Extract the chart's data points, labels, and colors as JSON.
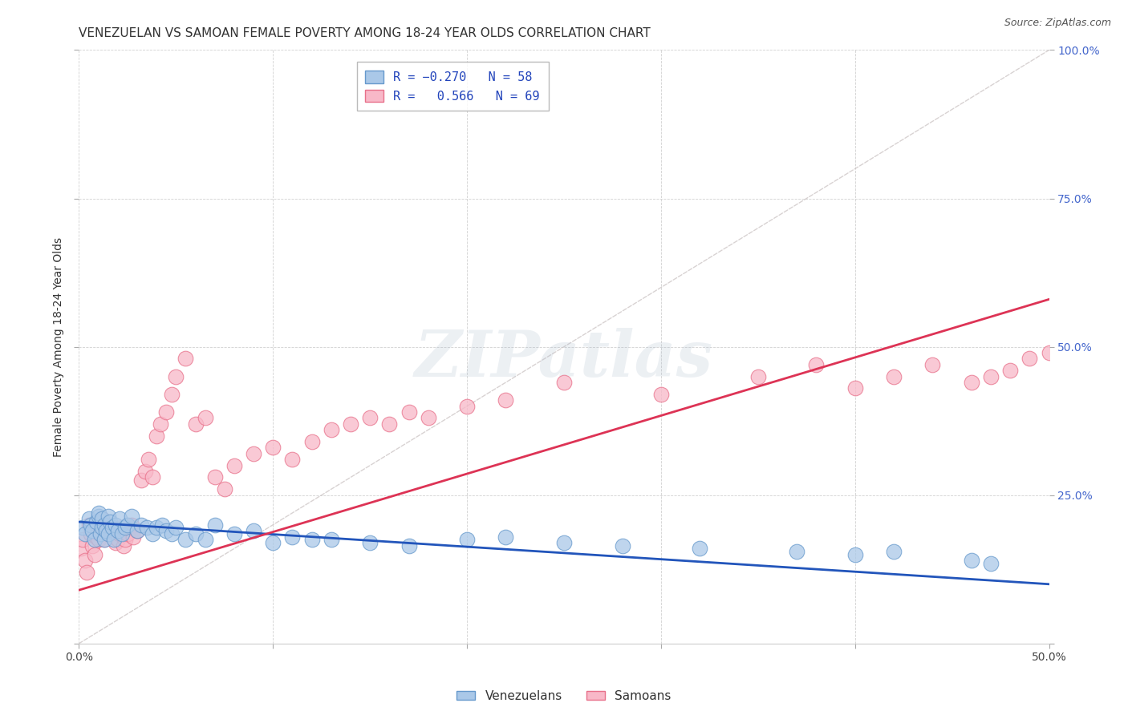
{
  "title": "VENEZUELAN VS SAMOAN FEMALE POVERTY AMONG 18-24 YEAR OLDS CORRELATION CHART",
  "source": "Source: ZipAtlas.com",
  "ylabel": "Female Poverty Among 18-24 Year Olds",
  "xlim": [
    0.0,
    0.5
  ],
  "ylim": [
    0.0,
    1.0
  ],
  "xticks": [
    0.0,
    0.1,
    0.2,
    0.3,
    0.4,
    0.5
  ],
  "xticklabels_show": [
    "0.0%",
    "",
    "",
    "",
    "",
    "50.0%"
  ],
  "yticks": [
    0.0,
    0.25,
    0.5,
    0.75,
    1.0
  ],
  "yticklabels_right": [
    "",
    "25.0%",
    "50.0%",
    "75.0%",
    "100.0%"
  ],
  "background_color": "#ffffff",
  "grid_color": "#cccccc",
  "venezuelan_color": "#aac8e8",
  "samoan_color": "#f8b8c8",
  "venezuelan_edge": "#6699cc",
  "samoan_edge": "#e8708a",
  "trendline_blue": "#2255bb",
  "trendline_pink": "#dd3355",
  "diag_color": "#c8c0c0",
  "watermark": "ZIPatlas",
  "title_fontsize": 11,
  "axis_label_fontsize": 10,
  "tick_fontsize": 10,
  "legend_fontsize": 11,
  "source_fontsize": 9,
  "venezuelan_x": [
    0.002,
    0.003,
    0.005,
    0.006,
    0.007,
    0.008,
    0.009,
    0.01,
    0.01,
    0.011,
    0.012,
    0.012,
    0.013,
    0.013,
    0.014,
    0.015,
    0.015,
    0.016,
    0.017,
    0.018,
    0.019,
    0.02,
    0.021,
    0.022,
    0.024,
    0.025,
    0.027,
    0.03,
    0.032,
    0.035,
    0.038,
    0.04,
    0.043,
    0.045,
    0.048,
    0.05,
    0.055,
    0.06,
    0.065,
    0.07,
    0.08,
    0.09,
    0.1,
    0.11,
    0.12,
    0.13,
    0.15,
    0.17,
    0.2,
    0.22,
    0.25,
    0.28,
    0.32,
    0.37,
    0.4,
    0.42,
    0.46,
    0.47
  ],
  "venezuelan_y": [
    0.195,
    0.185,
    0.21,
    0.2,
    0.19,
    0.175,
    0.205,
    0.215,
    0.22,
    0.185,
    0.195,
    0.21,
    0.175,
    0.2,
    0.19,
    0.215,
    0.185,
    0.205,
    0.195,
    0.175,
    0.2,
    0.19,
    0.21,
    0.185,
    0.195,
    0.2,
    0.215,
    0.19,
    0.2,
    0.195,
    0.185,
    0.195,
    0.2,
    0.19,
    0.185,
    0.195,
    0.175,
    0.185,
    0.175,
    0.2,
    0.185,
    0.19,
    0.17,
    0.18,
    0.175,
    0.175,
    0.17,
    0.165,
    0.175,
    0.18,
    0.17,
    0.165,
    0.16,
    0.155,
    0.15,
    0.155,
    0.14,
    0.135
  ],
  "samoan_x": [
    0.001,
    0.002,
    0.003,
    0.004,
    0.005,
    0.006,
    0.007,
    0.008,
    0.009,
    0.01,
    0.01,
    0.011,
    0.012,
    0.013,
    0.014,
    0.015,
    0.016,
    0.017,
    0.018,
    0.019,
    0.02,
    0.021,
    0.022,
    0.023,
    0.024,
    0.025,
    0.026,
    0.027,
    0.028,
    0.03,
    0.032,
    0.034,
    0.036,
    0.038,
    0.04,
    0.042,
    0.045,
    0.048,
    0.05,
    0.055,
    0.06,
    0.065,
    0.07,
    0.075,
    0.08,
    0.09,
    0.1,
    0.11,
    0.12,
    0.13,
    0.14,
    0.15,
    0.16,
    0.17,
    0.18,
    0.2,
    0.22,
    0.25,
    0.3,
    0.35,
    0.38,
    0.4,
    0.42,
    0.44,
    0.46,
    0.47,
    0.48,
    0.49,
    0.5
  ],
  "samoan_y": [
    0.16,
    0.175,
    0.14,
    0.12,
    0.2,
    0.185,
    0.165,
    0.15,
    0.18,
    0.175,
    0.19,
    0.195,
    0.21,
    0.175,
    0.2,
    0.185,
    0.195,
    0.19,
    0.18,
    0.17,
    0.175,
    0.185,
    0.195,
    0.165,
    0.175,
    0.185,
    0.195,
    0.2,
    0.18,
    0.19,
    0.275,
    0.29,
    0.31,
    0.28,
    0.35,
    0.37,
    0.39,
    0.42,
    0.45,
    0.48,
    0.37,
    0.38,
    0.28,
    0.26,
    0.3,
    0.32,
    0.33,
    0.31,
    0.34,
    0.36,
    0.37,
    0.38,
    0.37,
    0.39,
    0.38,
    0.4,
    0.41,
    0.44,
    0.42,
    0.45,
    0.47,
    0.43,
    0.45,
    0.47,
    0.44,
    0.45,
    0.46,
    0.48,
    0.49
  ],
  "ven_trend_x": [
    0.0,
    0.5
  ],
  "ven_trend_y": [
    0.205,
    0.1
  ],
  "sam_trend_x": [
    0.0,
    0.5
  ],
  "sam_trend_y": [
    0.09,
    0.58
  ]
}
